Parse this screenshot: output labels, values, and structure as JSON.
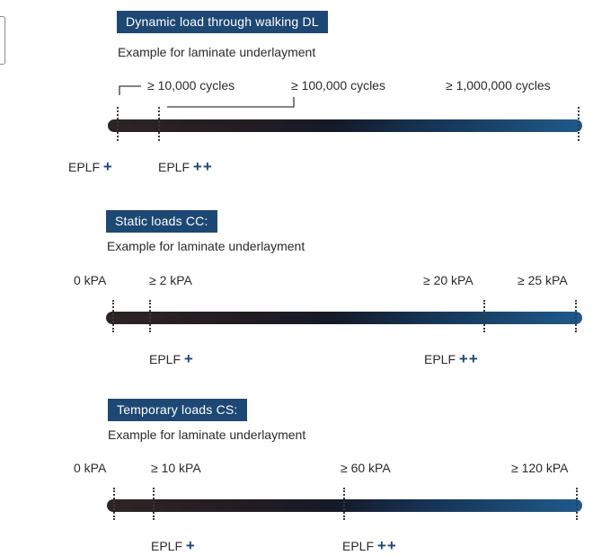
{
  "sections": [
    {
      "title": "Dynamic load through walking DL",
      "subtitle": "Example for laminate underlayment",
      "labels": [
        "≥ 10,000 cycles",
        "≥ 100,000 cycles",
        "≥ 1,000,000 cycles"
      ],
      "ratings": [
        {
          "name": "EPLF",
          "symbol": "+"
        },
        {
          "name": "EPLF",
          "symbol": "++"
        }
      ]
    },
    {
      "title": "Static loads CC:",
      "subtitle": "Example for laminate underlayment",
      "labels": [
        "0 kPA",
        "≥ 2 kPA",
        "≥ 20 kPA",
        "≥ 25 kPA"
      ],
      "ratings": [
        {
          "name": "EPLF",
          "symbol": "+"
        },
        {
          "name": "EPLF",
          "symbol": "++"
        }
      ]
    },
    {
      "title": "Temporary loads CS:",
      "subtitle": "Example for laminate underlayment",
      "labels": [
        "0 kPA",
        "≥ 10 kPA",
        "≥ 60 kPA",
        "≥ 120 kPA"
      ],
      "ratings": [
        {
          "name": "EPLF",
          "symbol": "+"
        },
        {
          "name": "EPLF",
          "symbol": "++"
        }
      ]
    }
  ],
  "colors": {
    "title_bg": "#1e4874",
    "rating_symbol": "#1e4874",
    "bar_start": "#2d2424",
    "bar_end": "#1f5a8a"
  }
}
